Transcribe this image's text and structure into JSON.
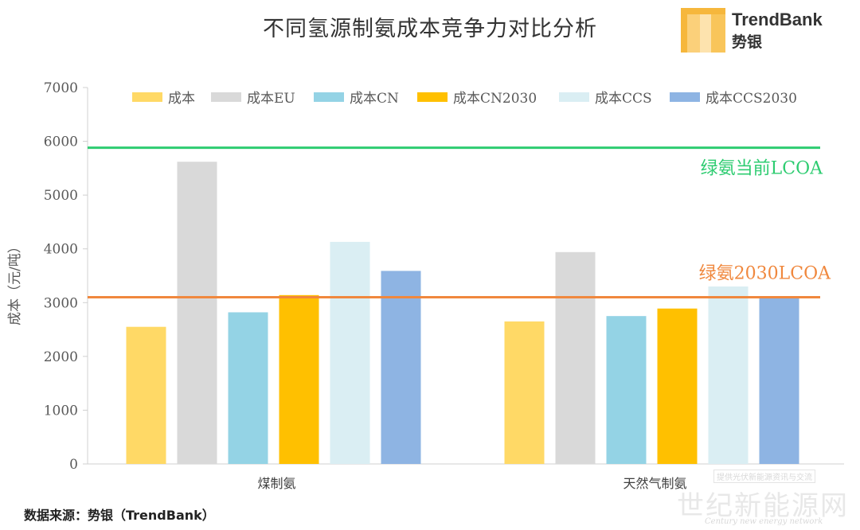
{
  "page_title": "不同氢源制氨成本竞争力对比分析",
  "brand": {
    "name": "TrendBank",
    "cn": "势银",
    "colors": [
      "#f6b73c",
      "#fbd07a",
      "#fde3ae"
    ]
  },
  "source_note": "数据来源：势银（TrendBank）",
  "watermark": {
    "cn": "世纪新能源网",
    "top": "提供光伏新能源资讯与交流",
    "en": "Century new energy network"
  },
  "chart_data": {
    "type": "bar",
    "ylabel": "成本（元/吨）",
    "xlabel": "",
    "ylim": [
      0,
      7000
    ],
    "yticks": [
      0,
      1000,
      2000,
      3000,
      4000,
      5000,
      6000,
      7000
    ],
    "grid": false,
    "legend_position": "top",
    "categories": [
      "煤制氨",
      "天然气制氨"
    ],
    "series": [
      {
        "name": "成本",
        "color": "#ffd966",
        "values": [
          2550,
          2650
        ]
      },
      {
        "name": "成本EU",
        "color": "#d9d9d9",
        "values": [
          5620,
          3940
        ]
      },
      {
        "name": "成本CN",
        "color": "#94d3e5",
        "values": [
          2820,
          2750
        ]
      },
      {
        "name": "成本CN2030",
        "color": "#ffc000",
        "values": [
          3140,
          2890
        ]
      },
      {
        "name": "成本CCS",
        "color": "#daeef3",
        "values": [
          4130,
          3300
        ]
      },
      {
        "name": "成本CCS2030",
        "color": "#8eb4e3",
        "values": [
          3590,
          3110
        ]
      }
    ],
    "reference_lines": [
      {
        "label": "绿氨当前LCOA",
        "value": 5880,
        "color": "#2ecc71"
      },
      {
        "label": "绿氨2030LCOA",
        "value": 3100,
        "color": "#f0883e"
      }
    ]
  }
}
